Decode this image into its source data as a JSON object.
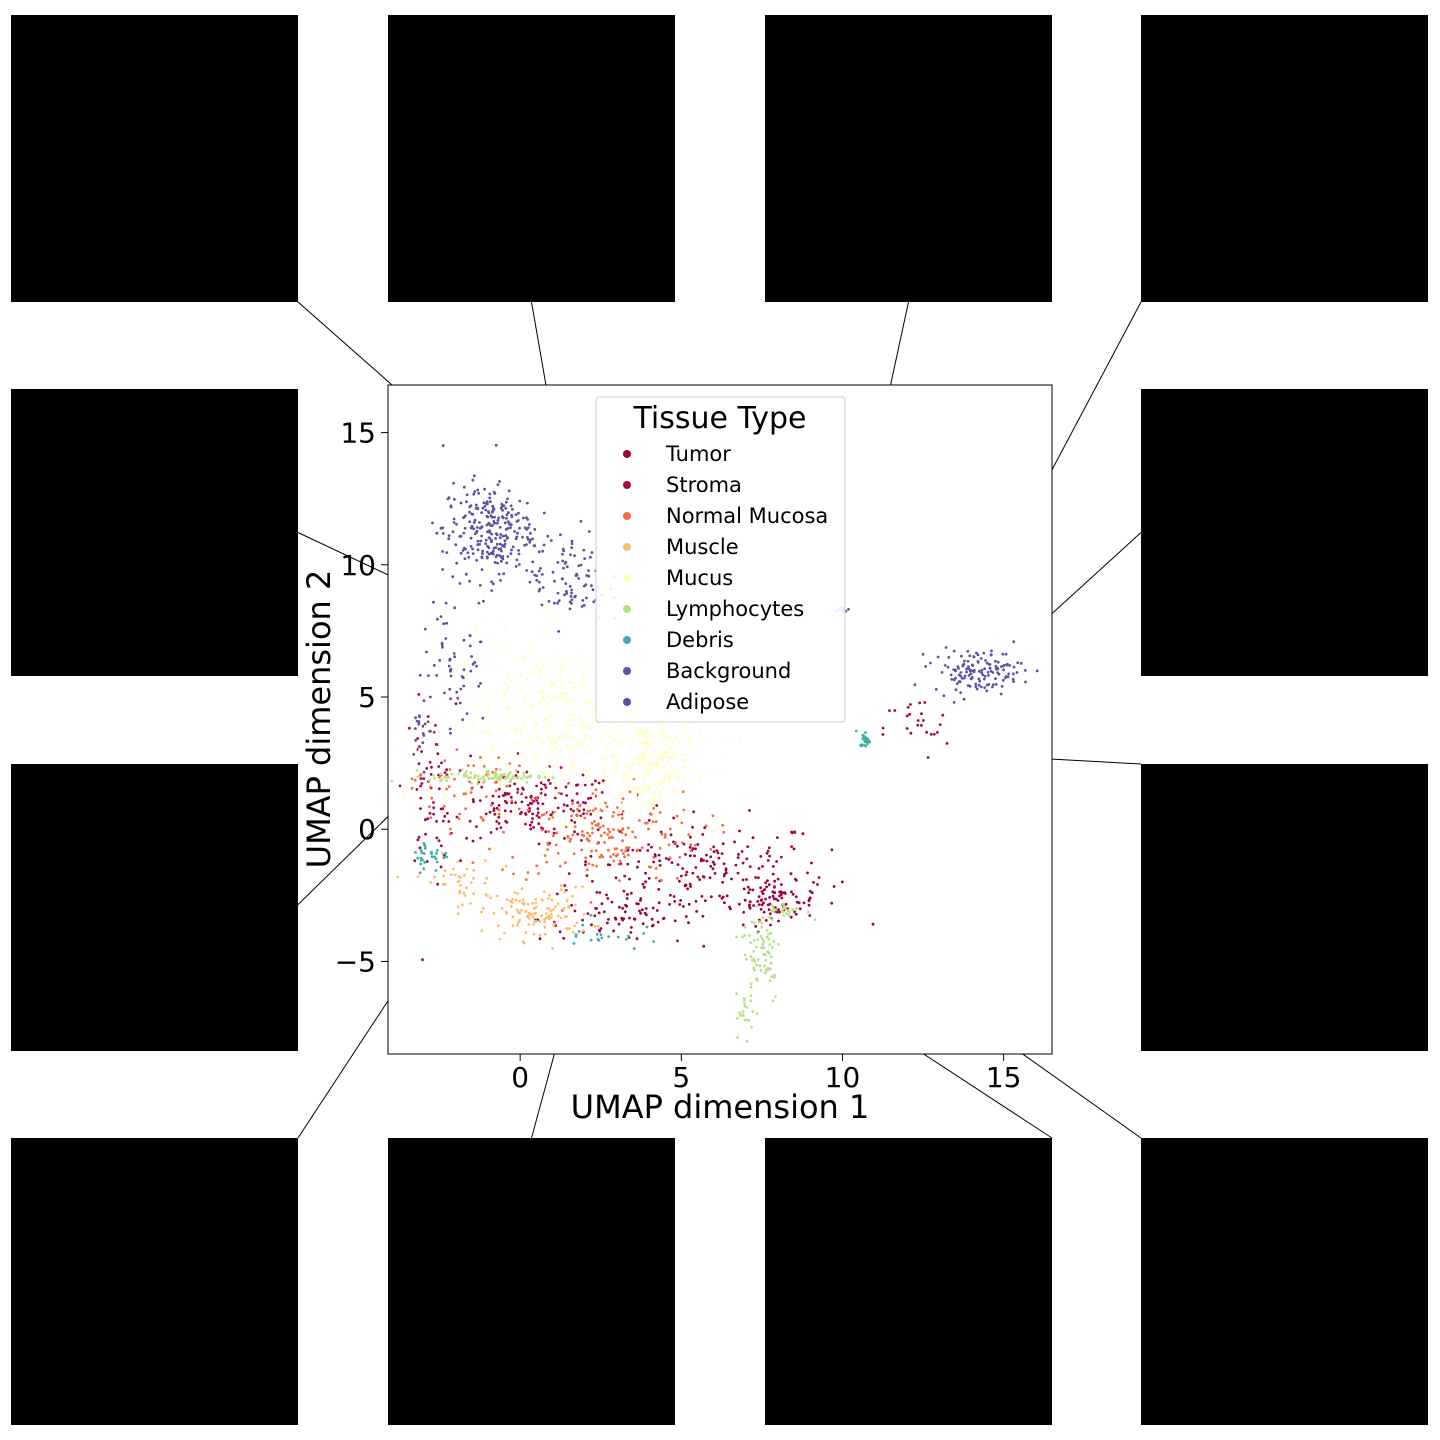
{
  "chart_data": {
    "type": "scatter",
    "title": "",
    "xlabel": "UMAP dimension 1",
    "ylabel": "UMAP dimension 2",
    "xlim": [
      -4.1,
      16.5
    ],
    "ylim": [
      -8.5,
      16.8
    ],
    "xticks": [
      0,
      5,
      10,
      15
    ],
    "yticks": [
      -5,
      0,
      5,
      10,
      15
    ],
    "xtick_labels": [
      "0",
      "5",
      "10",
      "15"
    ],
    "ytick_labels": [
      "−5",
      "0",
      "5",
      "10",
      "15"
    ],
    "grid": false,
    "legend": {
      "title": "Tissue Type",
      "placement": "upper center",
      "entries": [
        {
          "name": "Tumor",
          "color": "#9e0142"
        },
        {
          "name": "Stroma",
          "color": "#a50545"
        },
        {
          "name": "Normal Mucosa",
          "color": "#f46d43"
        },
        {
          "name": "Muscle",
          "color": "#fdbf6f"
        },
        {
          "name": "Mucus",
          "color": "#ffffbf"
        },
        {
          "name": "Lymphocytes",
          "color": "#b8e186"
        },
        {
          "name": "Debris",
          "color": "#3ab0a8"
        },
        {
          "name": "Background",
          "color": "#5b53a4"
        },
        {
          "name": "Adipose",
          "color": "#5e4fa2"
        }
      ]
    },
    "series": [
      {
        "name": "Tumor",
        "color": "#9e0142",
        "clusters": [
          {
            "cx": 5.5,
            "cy": -1.6,
            "sx": 2.0,
            "sy": 1.0,
            "n": 220
          },
          {
            "cx": 8.0,
            "cy": -2.7,
            "sx": 0.6,
            "sy": 0.35,
            "n": 80
          },
          {
            "cx": 3.0,
            "cy": -3.4,
            "sx": 1.2,
            "sy": 0.4,
            "n": 60
          }
        ]
      },
      {
        "name": "Stroma",
        "color": "#a50545",
        "clusters": [
          {
            "cx": 0.5,
            "cy": 0.9,
            "sx": 1.3,
            "sy": 0.6,
            "n": 160
          },
          {
            "cx": -2.8,
            "cy": 1.5,
            "sx": 0.4,
            "sy": 1.6,
            "n": 60
          },
          {
            "cx": 12.3,
            "cy": 3.8,
            "sx": 0.5,
            "sy": 0.6,
            "n": 25
          }
        ]
      },
      {
        "name": "Normal Mucosa",
        "color": "#f46d43",
        "clusters": [
          {
            "cx": 2.5,
            "cy": -0.2,
            "sx": 1.6,
            "sy": 0.9,
            "n": 180
          },
          {
            "cx": -1.8,
            "cy": 1.6,
            "sx": 0.8,
            "sy": 0.8,
            "n": 50
          }
        ]
      },
      {
        "name": "Muscle",
        "color": "#fdbf6f",
        "clusters": [
          {
            "cx": 0.6,
            "cy": -3.2,
            "sx": 0.8,
            "sy": 0.5,
            "n": 120
          },
          {
            "cx": -2.0,
            "cy": -2.0,
            "sx": 0.6,
            "sy": 0.5,
            "n": 40
          }
        ]
      },
      {
        "name": "Mucus",
        "color": "#ffffbf",
        "clusters": [
          {
            "cx": 1.5,
            "cy": 4.0,
            "sx": 1.8,
            "sy": 1.6,
            "n": 420
          },
          {
            "cx": 4.0,
            "cy": 2.3,
            "sx": 0.6,
            "sy": 0.9,
            "n": 180
          }
        ]
      },
      {
        "name": "Lymphocytes",
        "color": "#b8e186",
        "clusters": [
          {
            "cx": -1.0,
            "cy": 2.0,
            "sx": 0.9,
            "sy": 0.12,
            "n": 90
          },
          {
            "cx": 7.5,
            "cy": -4.6,
            "sx": 0.3,
            "sy": 1.0,
            "n": 70
          },
          {
            "cx": 7.0,
            "cy": -7.0,
            "sx": 0.15,
            "sy": 0.4,
            "n": 20
          },
          {
            "cx": 8.3,
            "cy": -3.1,
            "sx": 0.3,
            "sy": 0.15,
            "n": 25
          }
        ]
      },
      {
        "name": "Debris",
        "color": "#3ab0a8",
        "clusters": [
          {
            "cx": 10.7,
            "cy": 3.4,
            "sx": 0.08,
            "sy": 0.15,
            "n": 25
          },
          {
            "cx": -2.8,
            "cy": -1.0,
            "sx": 0.3,
            "sy": 0.3,
            "n": 30
          },
          {
            "cx": 2.5,
            "cy": -4.0,
            "sx": 0.6,
            "sy": 0.3,
            "n": 20
          }
        ]
      },
      {
        "name": "Background",
        "color": "#5b53a4",
        "clusters": [
          {
            "cx": 14.2,
            "cy": 6.0,
            "sx": 0.7,
            "sy": 0.4,
            "n": 140
          },
          {
            "cx": 10.0,
            "cy": 8.3,
            "sx": 0.1,
            "sy": 0.05,
            "n": 15
          }
        ]
      },
      {
        "name": "Adipose",
        "color": "#5e4fa2",
        "clusters": [
          {
            "cx": -1.0,
            "cy": 11.3,
            "sx": 0.7,
            "sy": 0.9,
            "n": 260
          },
          {
            "cx": 1.5,
            "cy": 9.5,
            "sx": 0.6,
            "sy": 0.9,
            "n": 90
          },
          {
            "cx": -2.0,
            "cy": 6.5,
            "sx": 0.5,
            "sy": 1.4,
            "n": 60
          },
          {
            "cx": -3.0,
            "cy": 4.0,
            "sx": 0.2,
            "sy": 0.6,
            "n": 20
          }
        ]
      }
    ],
    "callouts": [
      {
        "tile": "t1",
        "x": 1.7,
        "y": 10.7
      },
      {
        "tile": "t2",
        "x": 1.7,
        "y": 10.5
      },
      {
        "tile": "t3",
        "x": 10.0,
        "y": 8.4
      },
      {
        "tile": "t4",
        "x": 13.5,
        "y": 6.7
      },
      {
        "tile": "t5",
        "x": 13.3,
        "y": 4.6
      },
      {
        "tile": "t6",
        "x": -1.1,
        "y": 7.9
      },
      {
        "tile": "t7",
        "x": -0.9,
        "y": 4.3
      },
      {
        "tile": "t8",
        "x": 11.3,
        "y": 3.0
      },
      {
        "tile": "t9",
        "x": -0.5,
        "y": 0.2
      },
      {
        "tile": "t10",
        "x": 2.4,
        "y": -2.5
      },
      {
        "tile": "t11",
        "x": 6.0,
        "y": -3.3
      },
      {
        "tile": "t12",
        "x": 9.0,
        "y": -2.8
      }
    ]
  },
  "tiles": [
    {
      "id": "t1",
      "palette": "adipose",
      "anchor": "bottom-right",
      "blank": []
    },
    {
      "id": "t2",
      "palette": "adipose",
      "anchor": "bottom-center",
      "blank": []
    },
    {
      "id": "t3",
      "palette": "background",
      "anchor": "bottom-center",
      "blank": []
    },
    {
      "id": "t4",
      "palette": "background",
      "anchor": "bottom-left",
      "blank": []
    },
    {
      "id": "t6",
      "palette": "adipose-dark",
      "anchor": "middle-right",
      "blank": []
    },
    {
      "id": "t5",
      "palette": "background",
      "anchor": "middle-left",
      "blank": []
    },
    {
      "id": "t7",
      "palette": "mixed",
      "anchor": "right-lower",
      "blank": [
        2,
        3
      ]
    },
    {
      "id": "t8",
      "palette": "he",
      "anchor": "top-left",
      "blank": []
    },
    {
      "id": "t9",
      "palette": "he",
      "anchor": "top-right",
      "blank": []
    },
    {
      "id": "t10",
      "palette": "he",
      "anchor": "top-center",
      "blank": []
    },
    {
      "id": "t11",
      "palette": "he-dark",
      "anchor": "top-right",
      "blank": []
    },
    {
      "id": "t12",
      "palette": "he-dark",
      "anchor": "top-left",
      "blank": []
    }
  ]
}
